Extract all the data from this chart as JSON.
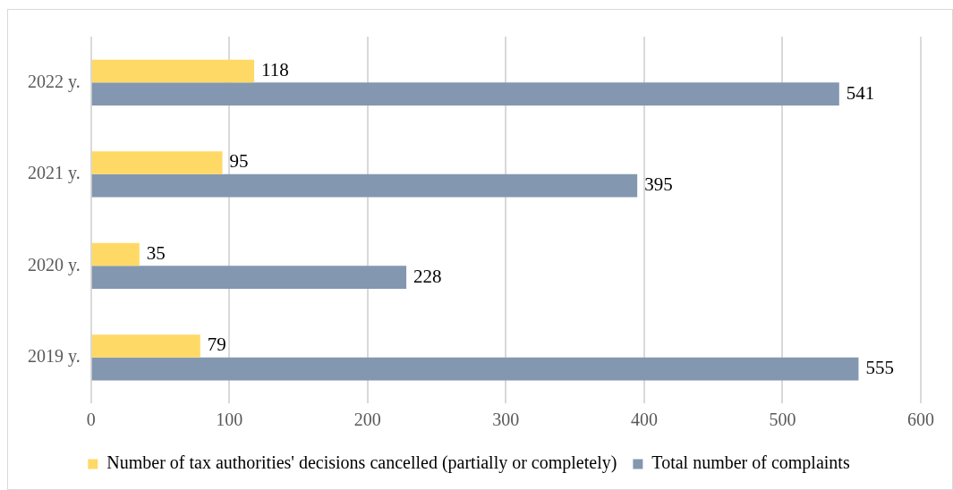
{
  "chart_data": {
    "type": "bar",
    "orientation": "horizontal",
    "categories": [
      "2022 y.",
      "2021 y.",
      "2020 y.",
      "2019 y."
    ],
    "series": [
      {
        "name": "Number of tax authorities' decisions cancelled (partially or completely)",
        "color": "#ffd966",
        "values": [
          118,
          95,
          35,
          79
        ]
      },
      {
        "name": "Total number of complaints",
        "color": "#8497b0",
        "values": [
          541,
          395,
          228,
          555
        ]
      }
    ],
    "xlim": [
      0,
      600
    ],
    "xticks": [
      0,
      100,
      200,
      300,
      400,
      500,
      600
    ],
    "grid": "x",
    "legend": "bottom",
    "data_labels": true
  }
}
